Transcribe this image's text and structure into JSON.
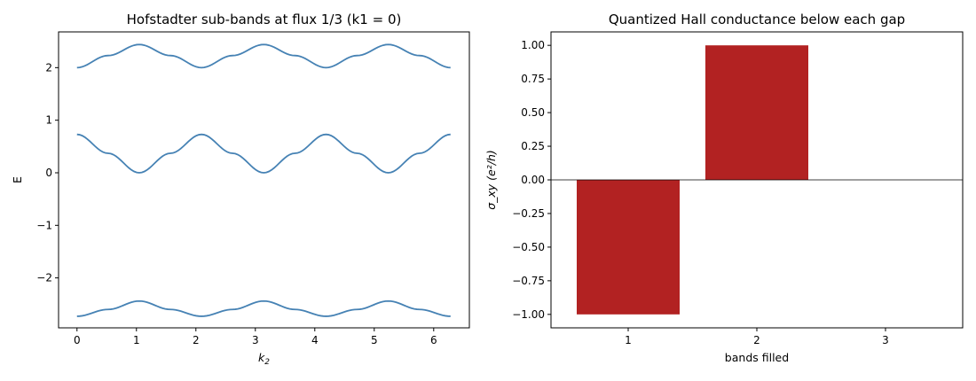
{
  "chart_data": [
    {
      "type": "line",
      "title": "Hofstadter sub-bands at flux 1/3 (k1 = 0)",
      "xlabel": "k",
      "xlabel_sub": "2",
      "ylabel": "E",
      "xlim": [
        -0.31,
        6.6
      ],
      "ylim": [
        -2.95,
        2.68
      ],
      "xticks": [
        0,
        1,
        2,
        3,
        4,
        5,
        6
      ],
      "xtick_labels": [
        "0",
        "1",
        "2",
        "3",
        "4",
        "5",
        "6"
      ],
      "yticks": [
        -2,
        -1,
        0,
        1,
        2
      ],
      "ytick_labels": [
        "−2",
        "−1",
        "0",
        "1",
        "2"
      ],
      "color": "#4682b4",
      "grid": false,
      "x_range": [
        0,
        6.2832
      ],
      "series": [
        {
          "x": [
            0,
            0.5236,
            1.0472,
            1.5708,
            2.0944,
            2.618,
            3.1416,
            3.6652,
            4.1888,
            4.7124,
            5.236,
            5.7596,
            6.2832
          ],
          "values": [
            2.0,
            2.23,
            2.44,
            2.23,
            2.0,
            2.23,
            2.44,
            2.23,
            2.0,
            2.23,
            2.44,
            2.23,
            2.0
          ]
        },
        {
          "x": [
            0,
            0.5236,
            1.0472,
            1.5708,
            2.0944,
            2.618,
            3.1416,
            3.6652,
            4.1888,
            4.7124,
            5.236,
            5.7596,
            6.2832
          ],
          "values": [
            0.73,
            0.37,
            0.0,
            0.37,
            0.73,
            0.37,
            0.0,
            0.37,
            0.73,
            0.37,
            0.0,
            0.37,
            0.73
          ]
        },
        {
          "x": [
            0,
            0.5236,
            1.0472,
            1.5708,
            2.0944,
            2.618,
            3.1416,
            3.6652,
            4.1888,
            4.7124,
            5.236,
            5.7596,
            6.2832
          ],
          "values": [
            -2.73,
            -2.6,
            -2.44,
            -2.6,
            -2.73,
            -2.6,
            -2.44,
            -2.6,
            -2.73,
            -2.6,
            -2.44,
            -2.6,
            -2.73
          ]
        }
      ]
    },
    {
      "type": "bar",
      "title": "Quantized Hall conductance below each gap",
      "xlabel": "bands filled",
      "ylabel": "σ_xy  (e²/h)",
      "categories": [
        "1",
        "2",
        "3"
      ],
      "values": [
        -1.0,
        1.0,
        0.0
      ],
      "xlim": [
        0.4,
        3.6
      ],
      "ylim": [
        -1.1,
        1.1
      ],
      "yticks": [
        -1.0,
        -0.75,
        -0.5,
        -0.25,
        0.0,
        0.25,
        0.5,
        0.75,
        1.0
      ],
      "ytick_labels": [
        "−1.00",
        "−0.75",
        "−0.50",
        "−0.25",
        "0.00",
        "0.25",
        "0.50",
        "0.75",
        "1.00"
      ],
      "bar_width": 0.8,
      "color": "#b22222",
      "zero_line": true,
      "grid": false
    }
  ]
}
